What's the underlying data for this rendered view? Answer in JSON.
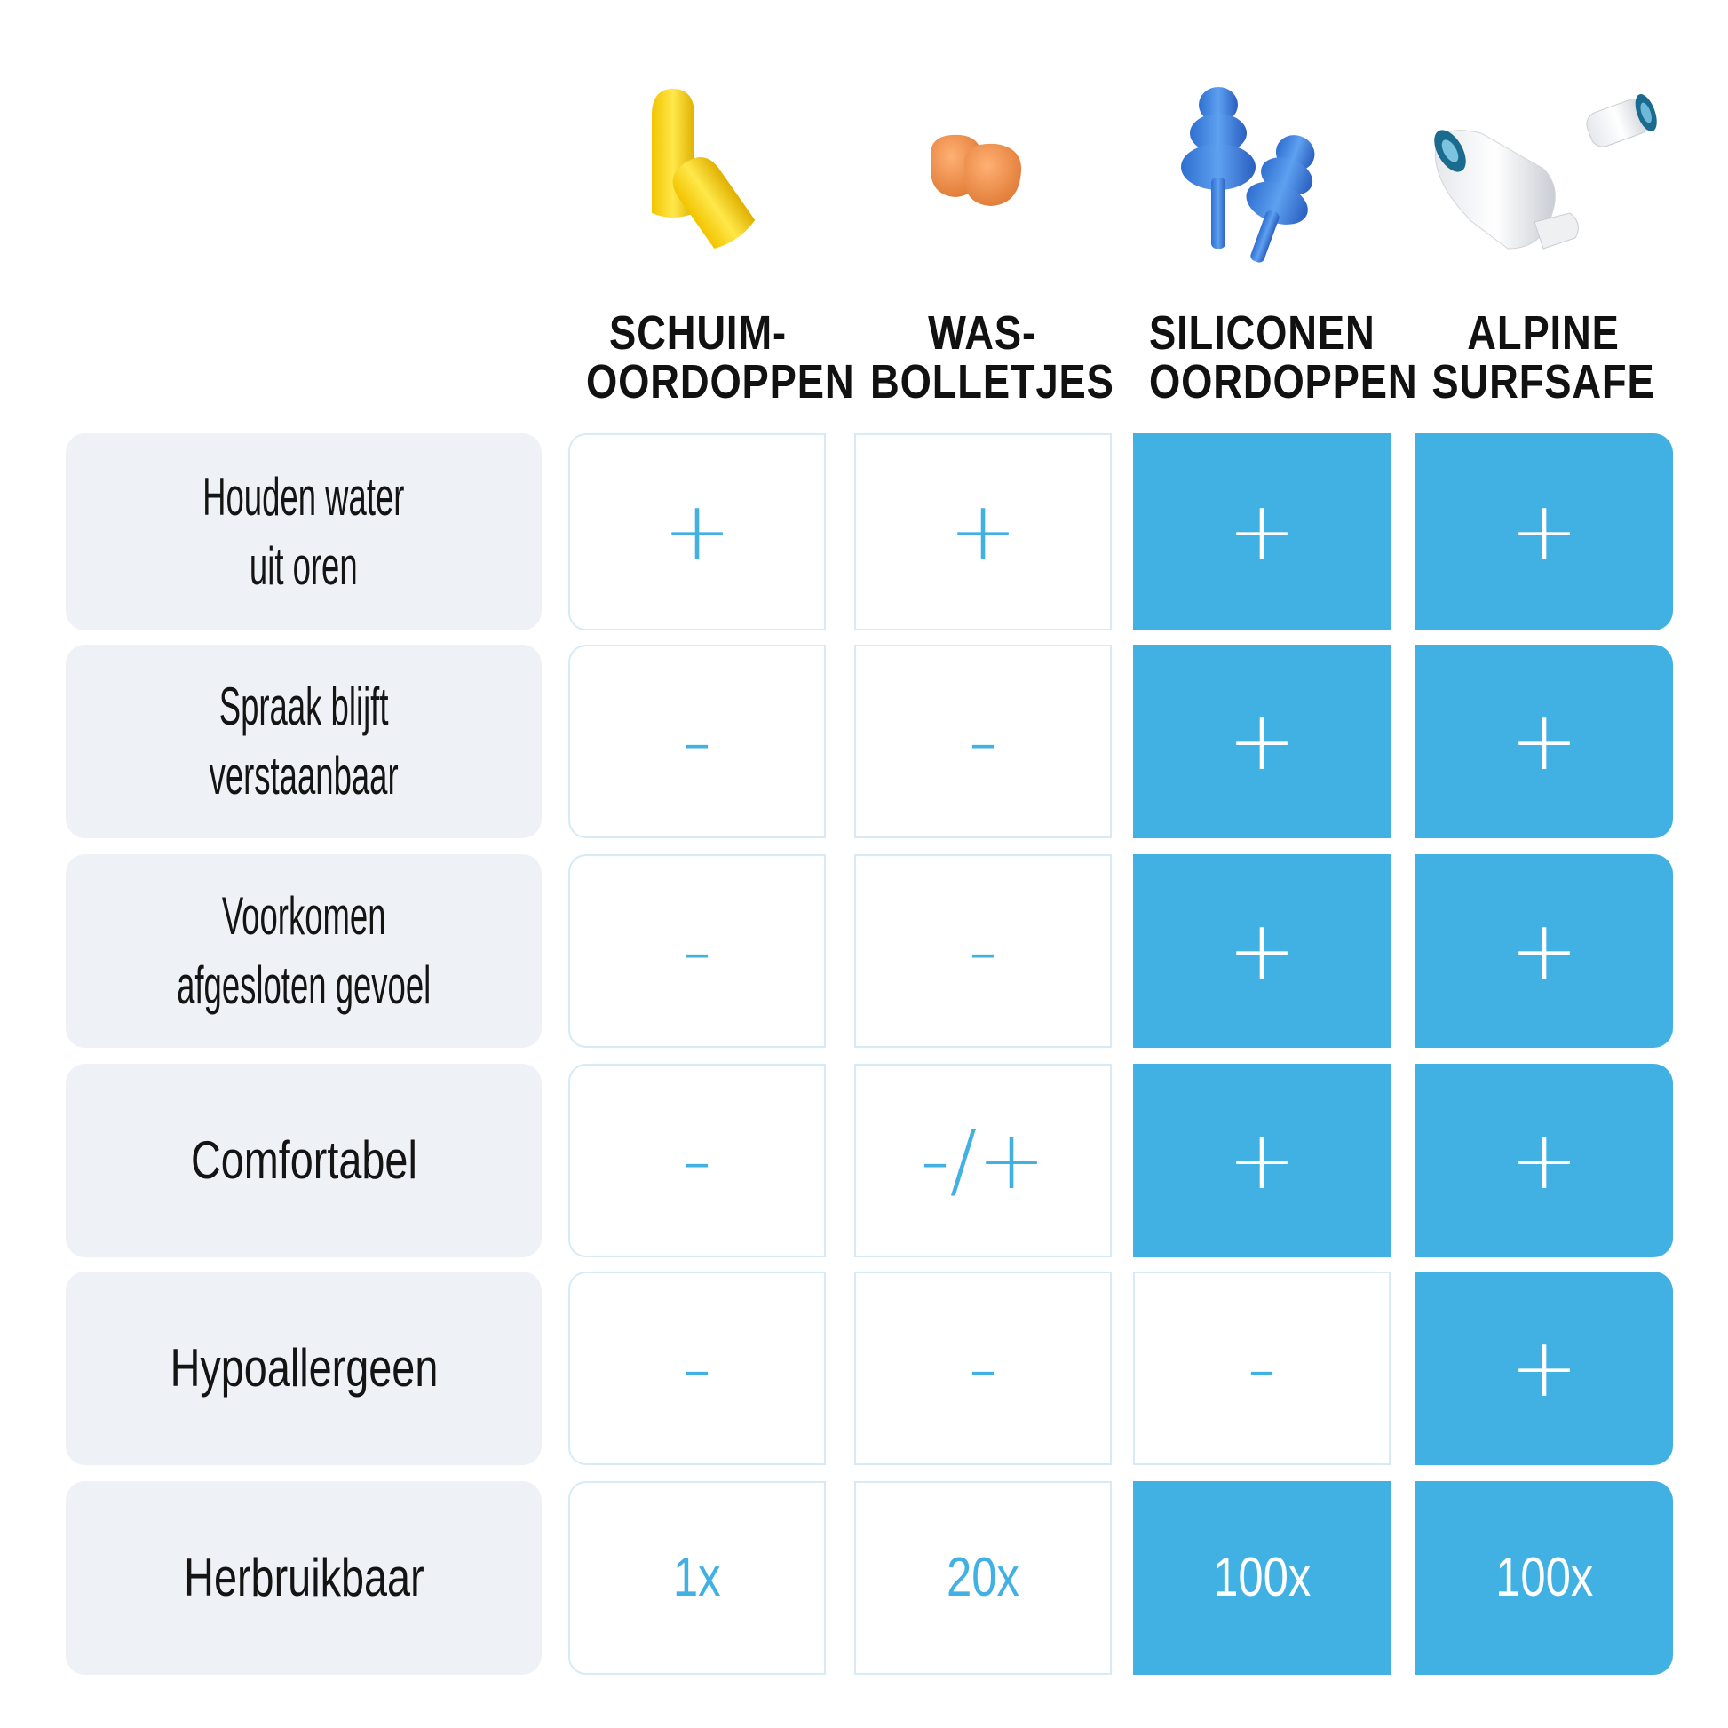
{
  "products": [
    {
      "line1": "SCHUIM-",
      "line2": "OORDOPPEN",
      "icon": "yellow-foam-earplugs-icon"
    },
    {
      "line1": "WAS-",
      "line2": "BOLLETJES",
      "icon": "orange-wax-balls-icon"
    },
    {
      "line1": "SILICONEN",
      "line2": "OORDOPPEN",
      "icon": "blue-silicone-earplugs-icon"
    },
    {
      "line1": "ALPINE",
      "line2": "SURFSAFE",
      "icon": "white-alpine-earplugs-icon"
    }
  ],
  "rows": [
    {
      "line1": "Houden water",
      "line2": "uit oren",
      "values": [
        "+",
        "+",
        "+",
        "+"
      ]
    },
    {
      "line1": "Spraak blijft",
      "line2": "verstaanbaar",
      "values": [
        "-",
        "-",
        "+",
        "+"
      ]
    },
    {
      "line1": "Voorkomen",
      "line2": "afgesloten gevoel",
      "values": [
        "-",
        "-",
        "+",
        "+"
      ]
    },
    {
      "line1": "Comfortabel",
      "line2": "",
      "values": [
        "-",
        "-/+",
        "+",
        "+"
      ]
    },
    {
      "line1": "Hypoallergeen",
      "line2": "",
      "values": [
        "-",
        "-",
        "-",
        "+"
      ]
    },
    {
      "line1": "Herbruikbaar",
      "line2": "",
      "values": [
        "1x",
        "20x",
        "100x",
        "100x"
      ]
    }
  ],
  "colors": {
    "accent": "#41b1e3",
    "label_bg": "#eef1f5",
    "cell_border": "#d7eaf5"
  }
}
